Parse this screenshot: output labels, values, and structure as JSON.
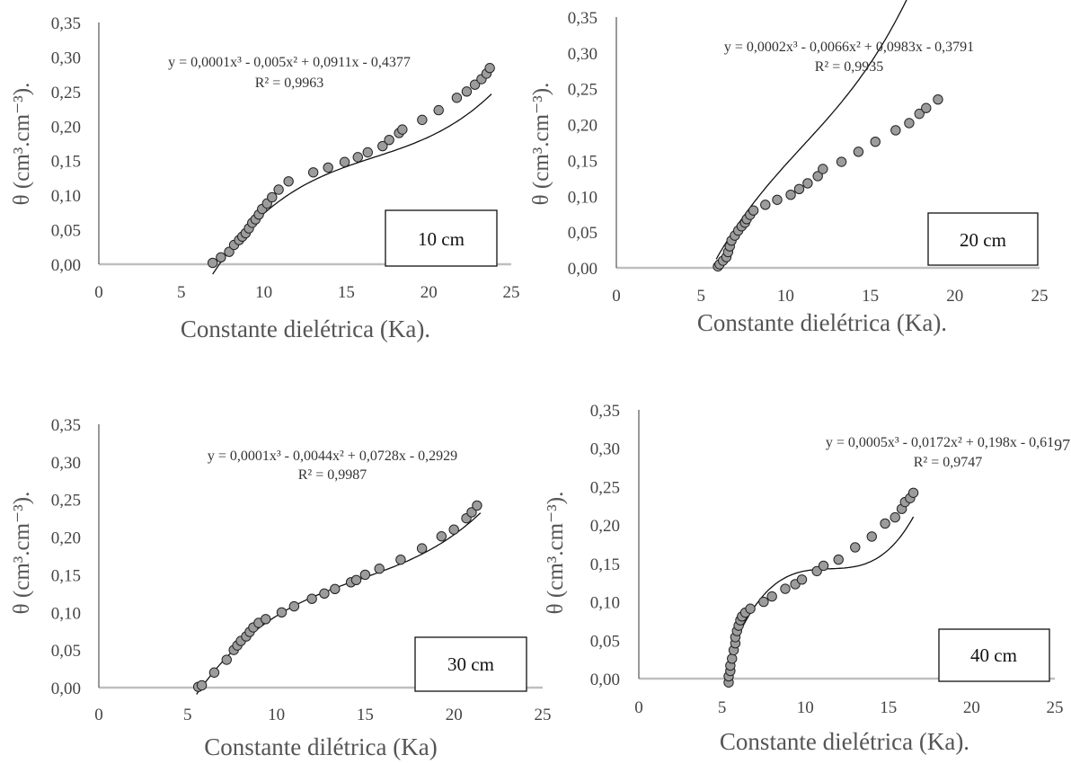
{
  "chart_data": [
    {
      "type": "scatter",
      "xlabel": "Constante dielétrica (Ka).",
      "ylabel": "θ (cm³.cm⁻³).",
      "xlim": [
        0,
        25
      ],
      "ylim": [
        0,
        0.35
      ],
      "x_ticks": [
        "0",
        "5",
        "10",
        "15",
        "20",
        "25"
      ],
      "y_ticks": [
        "0,00",
        "0,05",
        "0,10",
        "0,15",
        "0,20",
        "0,25",
        "0,30",
        "0,35"
      ],
      "equation": "y = 0,0001x³ - 0,005x² + 0,0911x - 0,4377",
      "r2": "R² = 0,9963",
      "label": "10 cm",
      "trendline": {
        "type": "polynomial",
        "order": 3,
        "coefficients": [
          0.0001,
          -0.005,
          0.0911,
          -0.4377
        ],
        "x_range": [
          6.9,
          23.8
        ]
      },
      "series": [
        {
          "x": [
            6.9,
            7.4,
            7.9,
            8.2,
            8.5,
            8.7,
            8.9,
            9.1,
            9.3,
            9.5,
            9.7,
            9.9,
            10.2,
            10.5,
            10.9,
            11.5,
            13.0,
            13.9,
            14.9,
            15.7,
            16.3,
            17.2,
            17.6,
            18.2,
            18.4,
            19.6,
            20.6,
            21.7,
            22.3,
            22.8,
            23.2,
            23.5,
            23.7
          ],
          "y": [
            0.002,
            0.01,
            0.018,
            0.028,
            0.035,
            0.04,
            0.045,
            0.052,
            0.06,
            0.065,
            0.072,
            0.08,
            0.088,
            0.097,
            0.108,
            0.12,
            0.133,
            0.14,
            0.148,
            0.155,
            0.162,
            0.171,
            0.18,
            0.19,
            0.195,
            0.209,
            0.223,
            0.241,
            0.25,
            0.26,
            0.268,
            0.276,
            0.284
          ]
        }
      ]
    },
    {
      "type": "scatter",
      "xlabel": "Constante dielétrica (Ka).",
      "ylabel": "θ (cm³.cm⁻³).",
      "xlim": [
        0,
        25
      ],
      "ylim": [
        0,
        0.35
      ],
      "x_ticks": [
        "0",
        "5",
        "10",
        "15",
        "20",
        "25"
      ],
      "y_ticks": [
        "0,00",
        "0,05",
        "0,10",
        "0,15",
        "0,20",
        "0,25",
        "0,30",
        "0,35"
      ],
      "equation": "y = 0,0002x³ - 0,0066x² + 0,0983x - 0,3791",
      "r2": "R² = 0,9935",
      "label": "20 cm",
      "trendline": {
        "type": "polynomial",
        "order": 3,
        "coefficients": [
          0.0002,
          -0.0066,
          0.0983,
          -0.3791
        ],
        "x_range": [
          5.9,
          19.2
        ]
      },
      "series": [
        {
          "x": [
            6.0,
            6.1,
            6.3,
            6.5,
            6.6,
            6.7,
            6.8,
            7.0,
            7.2,
            7.4,
            7.6,
            7.7,
            7.9,
            8.1,
            8.8,
            9.5,
            10.3,
            10.8,
            11.3,
            11.9,
            12.2,
            13.3,
            14.3,
            15.3,
            16.5,
            17.3,
            17.9,
            18.3,
            19.0
          ],
          "y": [
            0.002,
            0.005,
            0.01,
            0.015,
            0.022,
            0.03,
            0.038,
            0.045,
            0.052,
            0.058,
            0.063,
            0.068,
            0.074,
            0.08,
            0.088,
            0.095,
            0.102,
            0.11,
            0.118,
            0.128,
            0.138,
            0.148,
            0.162,
            0.176,
            0.192,
            0.202,
            0.215,
            0.223,
            0.235
          ]
        }
      ]
    },
    {
      "type": "scatter",
      "xlabel": "Constante dilétrica (Ka)",
      "ylabel": "θ (cm³.cm⁻³).",
      "xlim": [
        0,
        25
      ],
      "ylim": [
        0,
        0.35
      ],
      "x_ticks": [
        "0",
        "5",
        "10",
        "15",
        "20",
        "25"
      ],
      "y_ticks": [
        "0,00",
        "0,05",
        "0,10",
        "0,15",
        "0,20",
        "0,25",
        "0,30",
        "0,35"
      ],
      "equation": "y = 0,0001x³ - 0,0044x² + 0,0728x - 0,2929",
      "r2": "R² = 0,9987",
      "label": "30 cm",
      "trendline": {
        "type": "polynomial",
        "order": 3,
        "coefficients": [
          0.0001,
          -0.0044,
          0.0728,
          -0.2929
        ],
        "x_range": [
          5.5,
          21.5
        ]
      },
      "series": [
        {
          "x": [
            5.6,
            5.8,
            6.5,
            7.2,
            7.6,
            7.8,
            8.0,
            8.3,
            8.5,
            8.7,
            9.0,
            9.4,
            10.3,
            11.0,
            12.0,
            12.7,
            13.3,
            14.2,
            14.5,
            15.0,
            15.8,
            17.0,
            18.2,
            19.3,
            20.0,
            20.7,
            21.0,
            21.3
          ],
          "y": [
            0.001,
            0.003,
            0.02,
            0.037,
            0.05,
            0.056,
            0.062,
            0.068,
            0.074,
            0.08,
            0.086,
            0.091,
            0.1,
            0.108,
            0.118,
            0.125,
            0.131,
            0.14,
            0.143,
            0.15,
            0.158,
            0.17,
            0.185,
            0.201,
            0.21,
            0.225,
            0.233,
            0.242
          ]
        }
      ]
    },
    {
      "type": "scatter",
      "xlabel": "Constante dielétrica (Ka).",
      "ylabel": "θ (cm³.cm⁻³).",
      "xlim": [
        0,
        25
      ],
      "ylim": [
        0,
        0.35
      ],
      "x_ticks": [
        "0",
        "5",
        "10",
        "15",
        "20",
        "25"
      ],
      "y_ticks": [
        "0,00",
        "0,05",
        "0,10",
        "0,15",
        "0,20",
        "0,25",
        "0,30",
        "0,35"
      ],
      "equation": "y = 0,0005x³ - 0,0172x² + 0,198x - 0,61",
      "equation_tail": "97",
      "r2": "R² = 0,9747",
      "label": "40 cm",
      "trendline": {
        "type": "polynomial",
        "order": 3,
        "coefficients": [
          0.0005,
          -0.0172,
          0.198,
          -0.6197
        ],
        "x_range": [
          5.4,
          16.5
        ]
      },
      "series": [
        {
          "x": [
            5.4,
            5.4,
            5.5,
            5.5,
            5.6,
            5.7,
            5.8,
            5.8,
            5.9,
            6.0,
            6.1,
            6.2,
            6.4,
            6.7,
            7.5,
            8.0,
            8.8,
            9.4,
            9.8,
            10.7,
            11.1,
            12.0,
            13.0,
            14.0,
            14.8,
            15.4,
            15.8,
            16.0,
            16.3,
            16.5
          ],
          "y": [
            -0.005,
            0.003,
            0.01,
            0.017,
            0.026,
            0.037,
            0.046,
            0.054,
            0.062,
            0.069,
            0.076,
            0.081,
            0.086,
            0.091,
            0.1,
            0.107,
            0.117,
            0.123,
            0.129,
            0.14,
            0.147,
            0.155,
            0.171,
            0.185,
            0.202,
            0.21,
            0.221,
            0.23,
            0.235,
            0.242
          ]
        }
      ]
    }
  ]
}
